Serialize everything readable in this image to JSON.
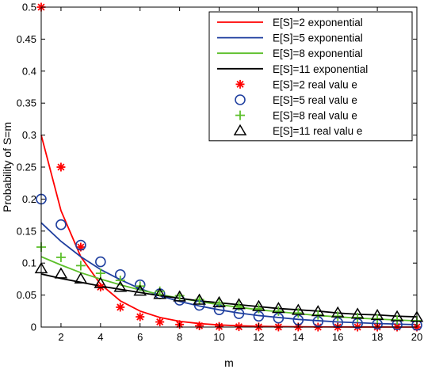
{
  "chart_data": {
    "type": "line",
    "xlabel": "m",
    "ylabel": "Probability of S=m",
    "xlim": [
      1,
      20
    ],
    "ylim": [
      0,
      0.5
    ],
    "xticks": [
      2,
      4,
      6,
      8,
      10,
      12,
      14,
      16,
      18,
      20
    ],
    "xtick_labels": [
      "2",
      "4",
      "6",
      "8",
      "10",
      "12",
      "14",
      "16",
      "18",
      "20"
    ],
    "yticks": [
      0,
      0.05,
      0.1,
      0.15,
      0.2,
      0.25,
      0.3,
      0.35,
      0.4,
      0.45,
      0.5
    ],
    "ytick_labels": [
      "0",
      "0.05",
      "0.1",
      "0.15",
      "0.2",
      "0.25",
      "0.3",
      "0.35",
      "0.4",
      "0.45",
      "0.5"
    ],
    "grid": false,
    "legend_position": "top-right",
    "x": [
      1,
      2,
      3,
      4,
      5,
      6,
      7,
      8,
      9,
      10,
      11,
      12,
      13,
      14,
      15,
      16,
      17,
      18,
      19,
      20
    ],
    "series": [
      {
        "name": "E[S]=2 exponential",
        "kind": "line",
        "color": "#ff0000",
        "values": [
          0.3,
          0.182,
          0.11,
          0.067,
          0.041,
          0.025,
          0.015,
          0.009,
          0.0055,
          0.0033,
          0.002,
          0.0012,
          0.0007,
          0.0004,
          0.0003,
          0.0002,
          0.0001,
          0.0001,
          0.0,
          0.0
        ]
      },
      {
        "name": "E[S]=5 exponential",
        "kind": "line",
        "color": "#1f3f9f",
        "values": [
          0.163,
          0.134,
          0.11,
          0.09,
          0.074,
          0.06,
          0.049,
          0.04,
          0.033,
          0.027,
          0.022,
          0.018,
          0.015,
          0.012,
          0.01,
          0.008,
          0.0068,
          0.0056,
          0.0046,
          0.0038
        ]
      },
      {
        "name": "E[S]=8 exponential",
        "kind": "line",
        "color": "#5cbf2a",
        "values": [
          0.11,
          0.097,
          0.085,
          0.075,
          0.066,
          0.058,
          0.051,
          0.045,
          0.04,
          0.035,
          0.031,
          0.027,
          0.024,
          0.021,
          0.018,
          0.016,
          0.014,
          0.0125,
          0.011,
          0.0097
        ]
      },
      {
        "name": "E[S]=11 exponential",
        "kind": "line",
        "color": "#000000",
        "values": [
          0.083,
          0.076,
          0.07,
          0.064,
          0.059,
          0.054,
          0.049,
          0.045,
          0.041,
          0.038,
          0.035,
          0.032,
          0.029,
          0.027,
          0.025,
          0.022,
          0.02,
          0.019,
          0.017,
          0.016
        ]
      },
      {
        "name": "E[S]=2 real valu e",
        "kind": "marker",
        "marker": "asterisk",
        "color": "#ff0000",
        "values": [
          0.5,
          0.25,
          0.125,
          0.0625,
          0.031,
          0.016,
          0.008,
          0.004,
          0.002,
          0.001,
          0.0005,
          0.0002,
          0.0001,
          0.0001,
          0.0,
          0.0,
          0.0,
          0.0,
          0.0,
          0.0
        ]
      },
      {
        "name": "E[S]=5 real valu e",
        "kind": "marker",
        "marker": "circle",
        "color": "#1f3f9f",
        "values": [
          0.2,
          0.16,
          0.128,
          0.102,
          0.082,
          0.066,
          0.052,
          0.042,
          0.034,
          0.027,
          0.021,
          0.017,
          0.014,
          0.011,
          0.0088,
          0.007,
          0.0056,
          0.0045,
          0.0036,
          0.0029
        ]
      },
      {
        "name": "E[S]=8 real valu e",
        "kind": "marker",
        "marker": "plus",
        "color": "#5cbf2a",
        "values": [
          0.125,
          0.109,
          0.096,
          0.084,
          0.073,
          0.064,
          0.056,
          0.049,
          0.043,
          0.038,
          0.033,
          0.029,
          0.025,
          0.022,
          0.019,
          0.017,
          0.015,
          0.013,
          0.011,
          0.0099
        ]
      },
      {
        "name": "E[S]=11 real valu e",
        "kind": "marker",
        "marker": "triangle",
        "color": "#000000",
        "values": [
          0.091,
          0.083,
          0.075,
          0.068,
          0.062,
          0.056,
          0.051,
          0.047,
          0.042,
          0.038,
          0.035,
          0.032,
          0.029,
          0.026,
          0.024,
          0.022,
          0.02,
          0.018,
          0.016,
          0.015
        ]
      }
    ]
  }
}
